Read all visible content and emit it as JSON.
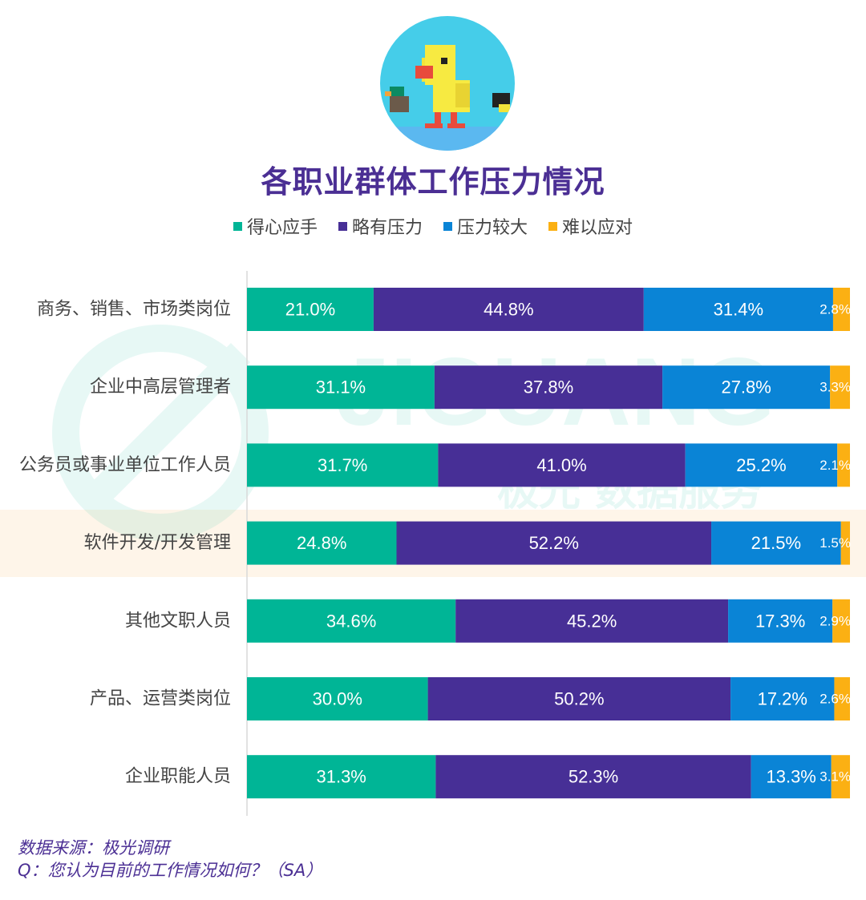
{
  "title": "各职业群体工作压力情况",
  "legend": [
    {
      "label": "得心应手",
      "color": "#00b596"
    },
    {
      "label": "略有压力",
      "color": "#472f96"
    },
    {
      "label": "压力较大",
      "color": "#0a84d6"
    },
    {
      "label": "难以应对",
      "color": "#fbb013"
    }
  ],
  "watermark": {
    "brand": "JIGUANG",
    "tagline": "极光 数据服务"
  },
  "source": {
    "line1": "数据来源：极光调研",
    "line2": "Q：您认为目前的工作情况如何？（SA）"
  },
  "chart_data": {
    "type": "bar",
    "orientation": "horizontal",
    "stacked": true,
    "xlim": [
      0,
      100
    ],
    "categories": [
      "商务、销售、市场类岗位",
      "企业中高层管理者",
      "公务员或事业单位工作人员",
      "软件开发/开发管理",
      "其他文职人员",
      "产品、运营类岗位",
      "企业职能人员"
    ],
    "series": [
      {
        "name": "得心应手",
        "color": "#00b596",
        "values": [
          21.0,
          31.1,
          31.7,
          24.8,
          34.6,
          30.0,
          31.3
        ],
        "labels": [
          "21.0%",
          "31.1%",
          "31.7%",
          "24.8%",
          "34.6%",
          "30.0%",
          "31.3%"
        ]
      },
      {
        "name": "略有压力",
        "color": "#472f96",
        "values": [
          44.8,
          37.8,
          41.0,
          52.2,
          45.2,
          50.2,
          52.3
        ],
        "labels": [
          "44.8%",
          "37.8%",
          "41.0%",
          "52.2%",
          "45.2%",
          "50.2%",
          "52.3%"
        ]
      },
      {
        "name": "压力较大",
        "color": "#0a84d6",
        "values": [
          31.4,
          27.8,
          25.2,
          21.5,
          17.3,
          17.2,
          13.3
        ],
        "labels": [
          "31.4%",
          "27.8%",
          "25.2%",
          "21.5%",
          "17.3%",
          "17.2%",
          "13.3%"
        ]
      },
      {
        "name": "难以应对",
        "color": "#fbb013",
        "values": [
          2.8,
          3.3,
          2.1,
          1.5,
          2.9,
          2.6,
          3.1
        ],
        "labels": [
          "2.8%",
          "3.3%",
          "2.1%",
          "1.5%",
          "2.9%",
          "2.6%",
          "3.1%"
        ]
      }
    ],
    "highlighted_category": "软件开发/开发管理",
    "grid": false
  }
}
